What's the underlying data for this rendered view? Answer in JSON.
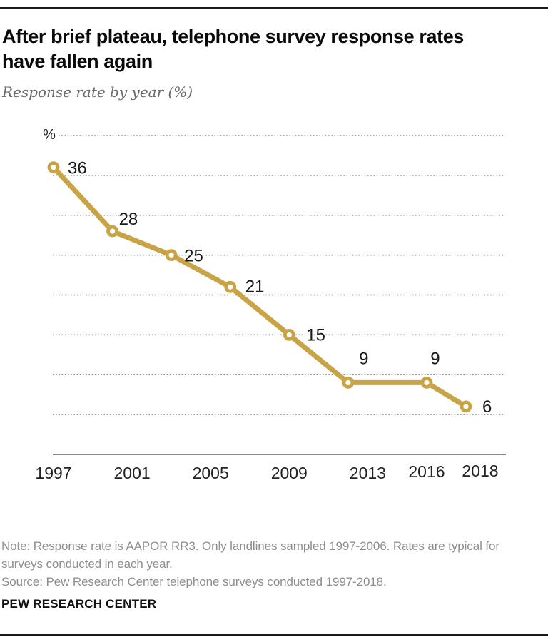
{
  "header": {
    "title_lines": [
      "After brief plateau, telephone survey response rates",
      "have fallen again"
    ],
    "subtitle": "Response rate by year (%)"
  },
  "chart_data": {
    "type": "line",
    "title": "After brief plateau, telephone survey response rates have fallen again",
    "subtitle": "Response rate by year (%)",
    "y_axis_unit_label": "%",
    "x": [
      1997,
      2000,
      2003,
      2006,
      2009,
      2012,
      2016,
      2018
    ],
    "values": [
      36,
      28,
      25,
      21,
      15,
      9,
      9,
      6
    ],
    "point_labels": [
      "36",
      "28",
      "25",
      "21",
      "15",
      "9",
      "9",
      "6"
    ],
    "x_tick_years": [
      1997,
      2001,
      2005,
      2009,
      2013,
      2016,
      2018
    ],
    "x_tick_labels": [
      "1997",
      "2001",
      "2005",
      "2009",
      "2013",
      "2016",
      "2018"
    ],
    "xlim": [
      1997,
      2018
    ],
    "ylim": [
      0,
      40
    ],
    "gridline_values": [
      40,
      35,
      30,
      25,
      20,
      15,
      10,
      5
    ],
    "grid_style": "dotted-horizontal",
    "legend": "none",
    "marker": "open-circle",
    "colors": {
      "line": "#C9A447",
      "marker_fill": "#FFFFFF",
      "grid": "#8A8A8A",
      "axis": "#888888",
      "data_labels": "#1A1A1A",
      "tick_labels": "#222222"
    }
  },
  "footer": {
    "note_lines": [
      "Note: Response rate is AAPOR RR3. Only landlines sampled 1997-2006. Rates are typical for",
      "surveys conducted in each year."
    ],
    "source": "Source: Pew Research Center telephone surveys conducted 1997-2018.",
    "brand": "PEW RESEARCH CENTER"
  }
}
